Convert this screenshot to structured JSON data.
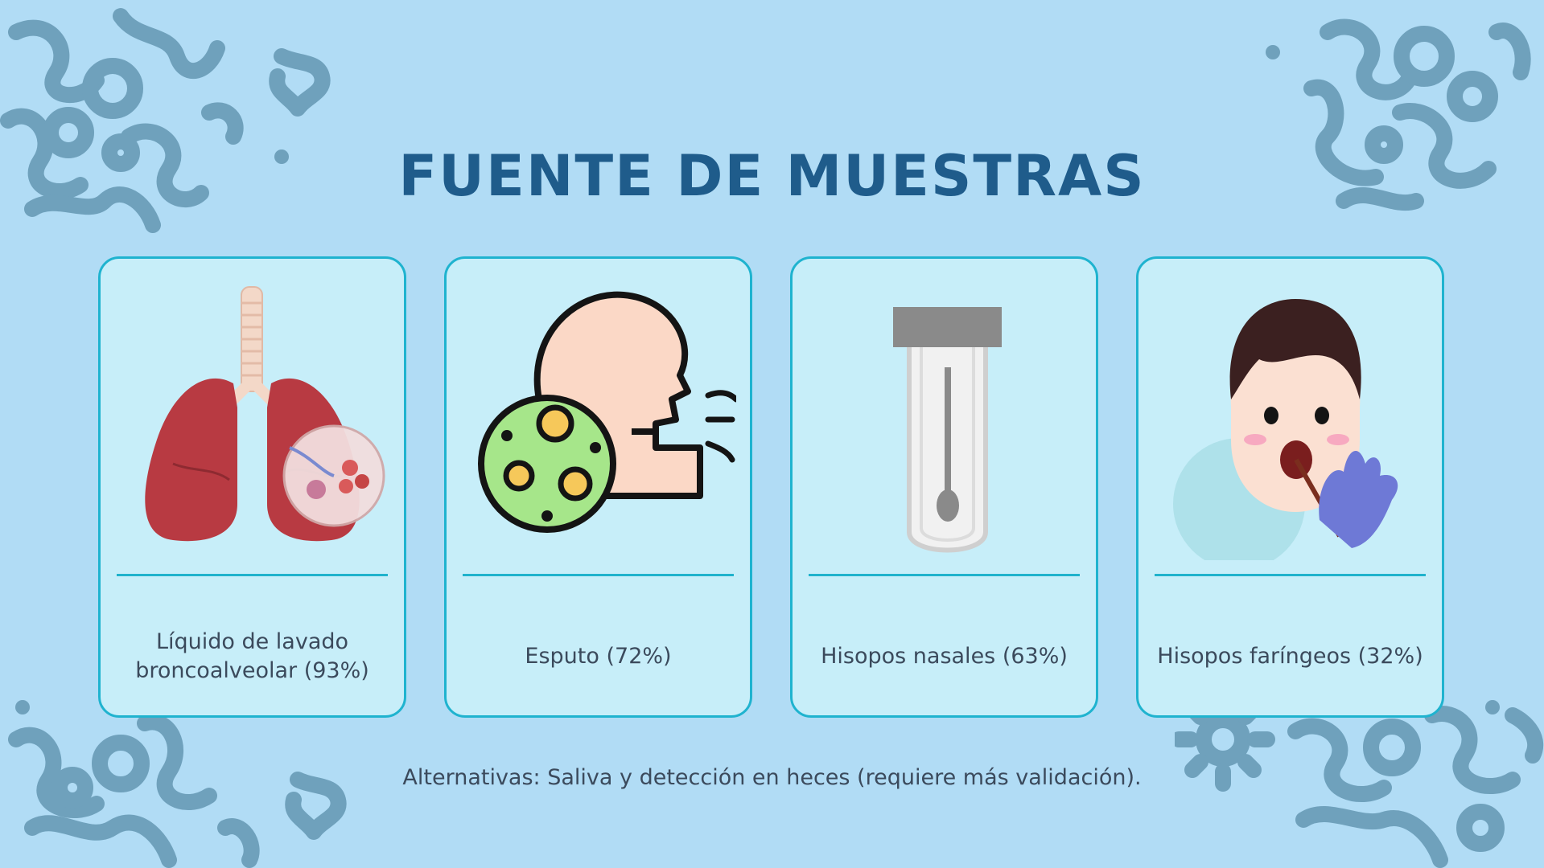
{
  "title": "FUENTE DE MUESTRAS",
  "cards": [
    {
      "label": "Líquido de lavado broncoalveolar (93%)",
      "icon": "lungs-icon"
    },
    {
      "label": "Esputo (72%)",
      "icon": "cough-sputum-icon"
    },
    {
      "label": "Hisopos nasales (63%)",
      "icon": "swab-tube-icon"
    },
    {
      "label": "Hisopos faríngeos (32%)",
      "icon": "throat-swab-icon"
    }
  ],
  "note": "Alternativas: Saliva y detección en heces (requiere más validación).",
  "colors": {
    "background": "#b1dcf5",
    "title": "#1f5c8b",
    "card": "#c7eef9",
    "card_border": "#1fb3cf",
    "decor": "#6fa1bc"
  }
}
